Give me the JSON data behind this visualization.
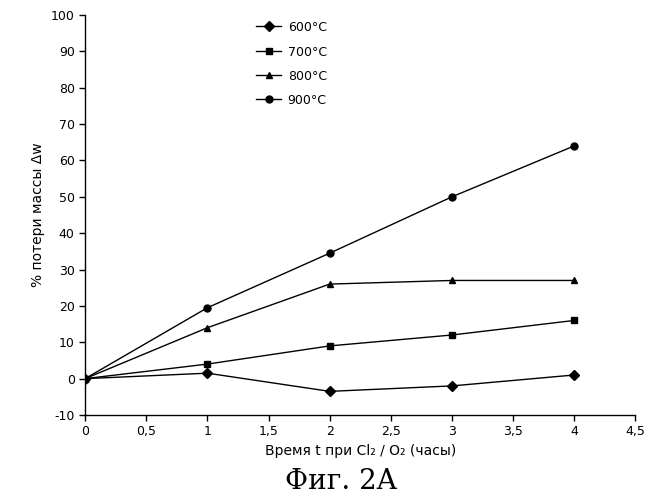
{
  "title": "Фиг. 2A",
  "xlabel": "Время t при Cl₂ / O₂ (часы)",
  "ylabel": "% потери массы Δw",
  "xlim": [
    0,
    4.5
  ],
  "ylim": [
    -10,
    100
  ],
  "xticks": [
    0,
    0.5,
    1.0,
    1.5,
    2.0,
    2.5,
    3.0,
    3.5,
    4.0,
    4.5
  ],
  "xtick_labels": [
    "0",
    "0,5",
    "1",
    "1,5",
    "2",
    "2,5",
    "3",
    "3,5",
    "4",
    "4,5"
  ],
  "yticks": [
    -10,
    0,
    10,
    20,
    30,
    40,
    50,
    60,
    70,
    80,
    90,
    100
  ],
  "ytick_labels": [
    "-10",
    "0",
    "10",
    "20",
    "30",
    "40",
    "50",
    "60",
    "70",
    "80",
    "90",
    "100"
  ],
  "series": [
    {
      "label": "600°C",
      "x": [
        0,
        1,
        2,
        3,
        4
      ],
      "y": [
        0,
        1.5,
        -3.5,
        -2.0,
        1.0
      ],
      "marker": "D",
      "color": "#000000",
      "markersize": 5,
      "linewidth": 1.0,
      "markerfacecolor": "#000000"
    },
    {
      "label": "700°C",
      "x": [
        0,
        1,
        2,
        3,
        4
      ],
      "y": [
        0,
        4,
        9,
        12,
        16
      ],
      "marker": "s",
      "color": "#000000",
      "markersize": 5,
      "linewidth": 1.0,
      "markerfacecolor": "#000000"
    },
    {
      "label": "800°C",
      "x": [
        0,
        1,
        2,
        3,
        4
      ],
      "y": [
        0,
        14,
        26,
        27,
        27
      ],
      "marker": "^",
      "color": "#000000",
      "markersize": 5,
      "linewidth": 1.0,
      "markerfacecolor": "#000000"
    },
    {
      "label": "900°C",
      "x": [
        0,
        1,
        2,
        3,
        4
      ],
      "y": [
        0,
        19.5,
        34.5,
        50,
        64
      ],
      "marker": "o",
      "color": "#000000",
      "markersize": 5,
      "linewidth": 1.0,
      "markerfacecolor": "#000000"
    }
  ],
  "background_color": "#ffffff",
  "legend_fontsize": 9,
  "axis_fontsize": 10,
  "tick_fontsize": 9,
  "title_fontsize": 20
}
